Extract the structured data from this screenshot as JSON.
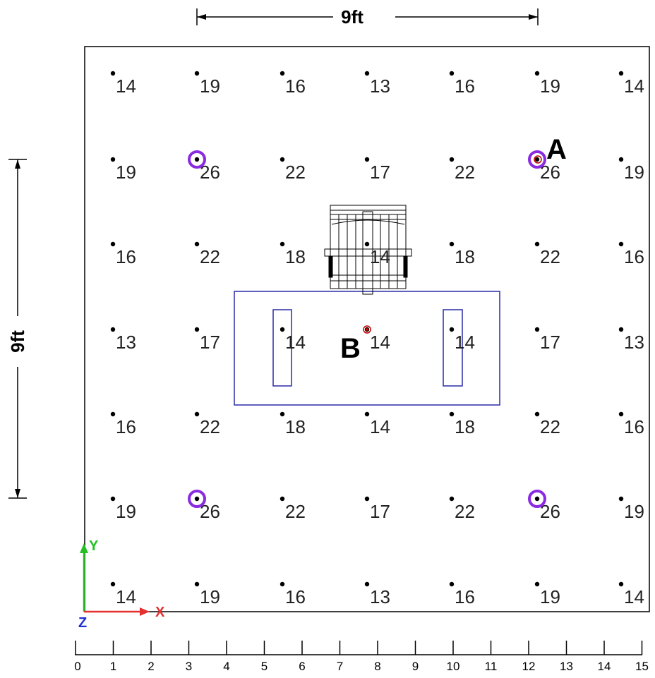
{
  "dimensions": {
    "width_label": "9ft",
    "height_label": "9ft"
  },
  "grid": {
    "columns": 7,
    "rows": 7,
    "values": [
      [
        "14",
        "19",
        "16",
        "13",
        "16",
        "19",
        "14"
      ],
      [
        "19",
        "26",
        "22",
        "17",
        "22",
        "26",
        "19"
      ],
      [
        "16",
        "22",
        "18",
        "14",
        "18",
        "22",
        "16"
      ],
      [
        "13",
        "17",
        "14",
        "14",
        "14",
        "17",
        "13"
      ],
      [
        "16",
        "22",
        "18",
        "14",
        "18",
        "22",
        "16"
      ],
      [
        "19",
        "26",
        "22",
        "17",
        "22",
        "26",
        "19"
      ],
      [
        "14",
        "19",
        "16",
        "13",
        "16",
        "19",
        "14"
      ]
    ]
  },
  "fixtures": [
    {
      "row": 1,
      "col": 1
    },
    {
      "row": 1,
      "col": 5
    },
    {
      "row": 5,
      "col": 1
    },
    {
      "row": 5,
      "col": 5
    }
  ],
  "markers": [
    {
      "label": "A"
    },
    {
      "label": "B"
    }
  ],
  "axes": {
    "x_label": "X",
    "y_label": "Y",
    "z_label": "Z",
    "x_color": "#e53030",
    "y_color": "#22c022",
    "z_color": "#2030d0"
  },
  "scale": {
    "ticks": [
      "0",
      "1",
      "2",
      "3",
      "4",
      "5",
      "6",
      "7",
      "8",
      "9",
      "10",
      "11",
      "12",
      "13",
      "14",
      "15"
    ]
  },
  "colors": {
    "room_border": "#000000",
    "table_border": "#2a2aa8",
    "fixture_ring": "#8a2be2",
    "marker_dot": "#c00000"
  }
}
